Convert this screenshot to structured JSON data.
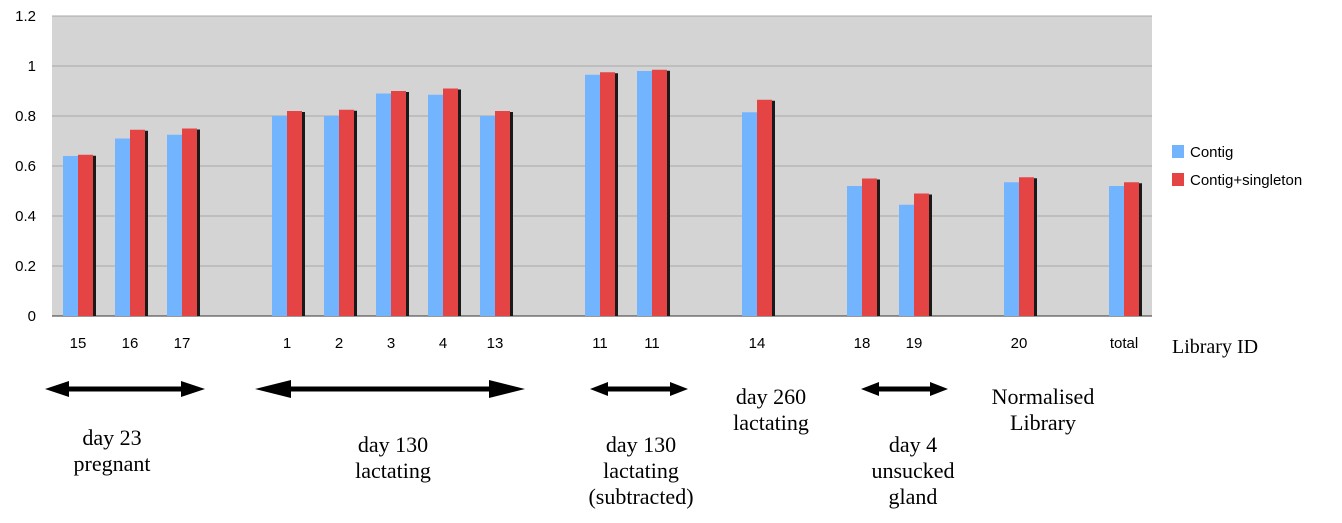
{
  "chart_data": {
    "type": "bar",
    "categories": [
      "15",
      "16",
      "17",
      "1",
      "2",
      "3",
      "4",
      "13",
      "11",
      "11",
      "14",
      "18",
      "19",
      "20",
      "total"
    ],
    "series": [
      {
        "name": "Contig",
        "color": "#73b4ff",
        "values": [
          0.64,
          0.71,
          0.725,
          0.8,
          0.8,
          0.89,
          0.885,
          0.8,
          0.965,
          0.98,
          0.815,
          0.52,
          0.445,
          0.535,
          0.52
        ]
      },
      {
        "name": "Contig+singleton",
        "color": "#e54444",
        "values": [
          0.645,
          0.745,
          0.75,
          0.82,
          0.825,
          0.9,
          0.91,
          0.82,
          0.975,
          0.985,
          0.865,
          0.55,
          0.49,
          0.555,
          0.535
        ]
      }
    ],
    "xlabel": "Library ID",
    "ylabel": "",
    "ylim": [
      0,
      1.2
    ],
    "yticks": [
      "0",
      "0.2",
      "0.4",
      "0.6",
      "0.8",
      "1",
      "1.2"
    ],
    "grid": true,
    "legend": "right",
    "plot_background": "#d4d4d4",
    "groups": [
      {
        "lines": [
          "day 23",
          "pregnant"
        ],
        "arrow": true
      },
      {
        "lines": [
          "day 130",
          "lactating"
        ],
        "arrow": true
      },
      {
        "lines": [
          "day 130",
          "lactating",
          "(subtracted)"
        ],
        "arrow": true
      },
      {
        "lines": [
          "day 260",
          "lactating"
        ],
        "arrow": false
      },
      {
        "lines": [
          "day 4",
          "unsucked",
          "gland"
        ],
        "arrow": true
      },
      {
        "lines": [
          "Normalised",
          "Library"
        ],
        "arrow": false
      }
    ]
  }
}
